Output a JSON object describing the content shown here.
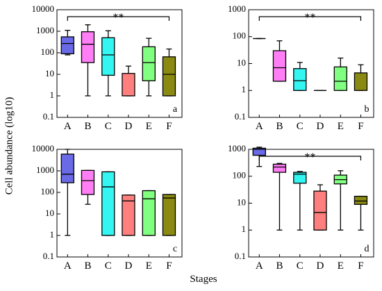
{
  "figure": {
    "ylabel": "Cell abundance (log10)",
    "xlabel": "Stages"
  },
  "colors": {
    "A": "#6a6ae6",
    "B": "#ff7ef5",
    "C": "#33f5f2",
    "D": "#ff7f7f",
    "E": "#80ff80",
    "F": "#8a8a13"
  },
  "chart_data": [
    {
      "type": "box",
      "panel": "a",
      "categories": [
        "A",
        "B",
        "C",
        "D",
        "E",
        "F"
      ],
      "yscale": "log",
      "ylim": [
        0.1,
        10000
      ],
      "yticks": [
        "0.1",
        "1",
        "10",
        "100",
        "1000",
        "10000"
      ],
      "significance": {
        "from": "A",
        "to": "F",
        "label": "**"
      },
      "boxes": [
        {
          "cat": "A",
          "min": 80,
          "q1": 90,
          "median": 270,
          "q3": 550,
          "max": 1100
        },
        {
          "cat": "B",
          "min": 1,
          "q1": 35,
          "median": 250,
          "q3": 950,
          "max": 2000
        },
        {
          "cat": "C",
          "min": 1,
          "q1": 9,
          "median": 80,
          "q3": 500,
          "max": 1050
        },
        {
          "cat": "D",
          "min": 1,
          "q1": 1,
          "median": null,
          "q3": 11,
          "max": 24
        },
        {
          "cat": "E",
          "min": 1,
          "q1": 5,
          "median": 35,
          "q3": 190,
          "max": 470
        },
        {
          "cat": "F",
          "min": 1,
          "q1": 1,
          "median": 10,
          "q3": 65,
          "max": 150
        }
      ]
    },
    {
      "type": "box",
      "panel": "b",
      "categories": [
        "A",
        "B",
        "C",
        "D",
        "E",
        "F"
      ],
      "yscale": "log",
      "ylim": [
        0.1,
        1000
      ],
      "yticks": [
        "0.1",
        "1",
        "10",
        "100",
        "1000"
      ],
      "significance": {
        "from": "A",
        "to": "F",
        "label": "**"
      },
      "boxes": [
        {
          "cat": "A",
          "min": 85,
          "q1": 85,
          "median": 85,
          "q3": 85,
          "max": 85
        },
        {
          "cat": "B",
          "min": 2.2,
          "q1": 2.2,
          "median": 7,
          "q3": 30,
          "max": 70
        },
        {
          "cat": "C",
          "min": 1,
          "q1": 1,
          "median": 2.3,
          "q3": 6.5,
          "max": 11
        },
        {
          "cat": "D",
          "min": 1,
          "q1": 1,
          "median": 1,
          "q3": 1,
          "max": 1
        },
        {
          "cat": "E",
          "min": 1,
          "q1": 1,
          "median": 2.2,
          "q3": 7.5,
          "max": 16
        },
        {
          "cat": "F",
          "min": 1,
          "q1": 1,
          "median": null,
          "q3": 4.5,
          "max": 9
        }
      ]
    },
    {
      "type": "box",
      "panel": "c",
      "categories": [
        "A",
        "B",
        "C",
        "D",
        "E",
        "F"
      ],
      "yscale": "log",
      "ylim": [
        0.1,
        10000
      ],
      "yticks": [
        "0.1",
        "1",
        "10",
        "100",
        "1000",
        "10000"
      ],
      "significance": null,
      "boxes": [
        {
          "cat": "A",
          "min": 1,
          "q1": 280,
          "median": 700,
          "q3": 6000,
          "max": 10000
        },
        {
          "cat": "B",
          "min": 28,
          "q1": 80,
          "median": 350,
          "q3": 1050,
          "max": 1050
        },
        {
          "cat": "C",
          "min": 1,
          "q1": 1,
          "median": 180,
          "q3": 900,
          "max": 900
        },
        {
          "cat": "D",
          "min": 1,
          "q1": 1,
          "median": 40,
          "q3": 75,
          "max": 75
        },
        {
          "cat": "E",
          "min": 1,
          "q1": 1,
          "median": 50,
          "q3": 120,
          "max": 120
        },
        {
          "cat": "F",
          "min": 1,
          "q1": 1,
          "median": 55,
          "q3": 80,
          "max": 80
        }
      ]
    },
    {
      "type": "box",
      "panel": "d",
      "categories": [
        "A",
        "B",
        "C",
        "D",
        "E",
        "F"
      ],
      "yscale": "log",
      "ylim": [
        0.1,
        1000
      ],
      "yticks": [
        "0.1",
        "1",
        "10",
        "100",
        "1000"
      ],
      "significance": {
        "from": "A",
        "to": "F",
        "label": "**"
      },
      "boxes": [
        {
          "cat": "A",
          "min": 230,
          "q1": 600,
          "median": 1000,
          "q3": 1100,
          "max": 1200
        },
        {
          "cat": "B",
          "min": 1,
          "q1": 140,
          "median": 220,
          "q3": 280,
          "max": 300
        },
        {
          "cat": "C",
          "min": 1,
          "q1": 55,
          "median": 120,
          "q3": 140,
          "max": 150
        },
        {
          "cat": "D",
          "min": 1,
          "q1": 1,
          "median": 4.5,
          "q3": 28,
          "max": 48
        },
        {
          "cat": "E",
          "min": 1,
          "q1": 52,
          "median": 75,
          "q3": 110,
          "max": 160
        },
        {
          "cat": "F",
          "min": 1,
          "q1": 9,
          "median": 12,
          "q3": 18,
          "max": 18
        }
      ]
    }
  ]
}
